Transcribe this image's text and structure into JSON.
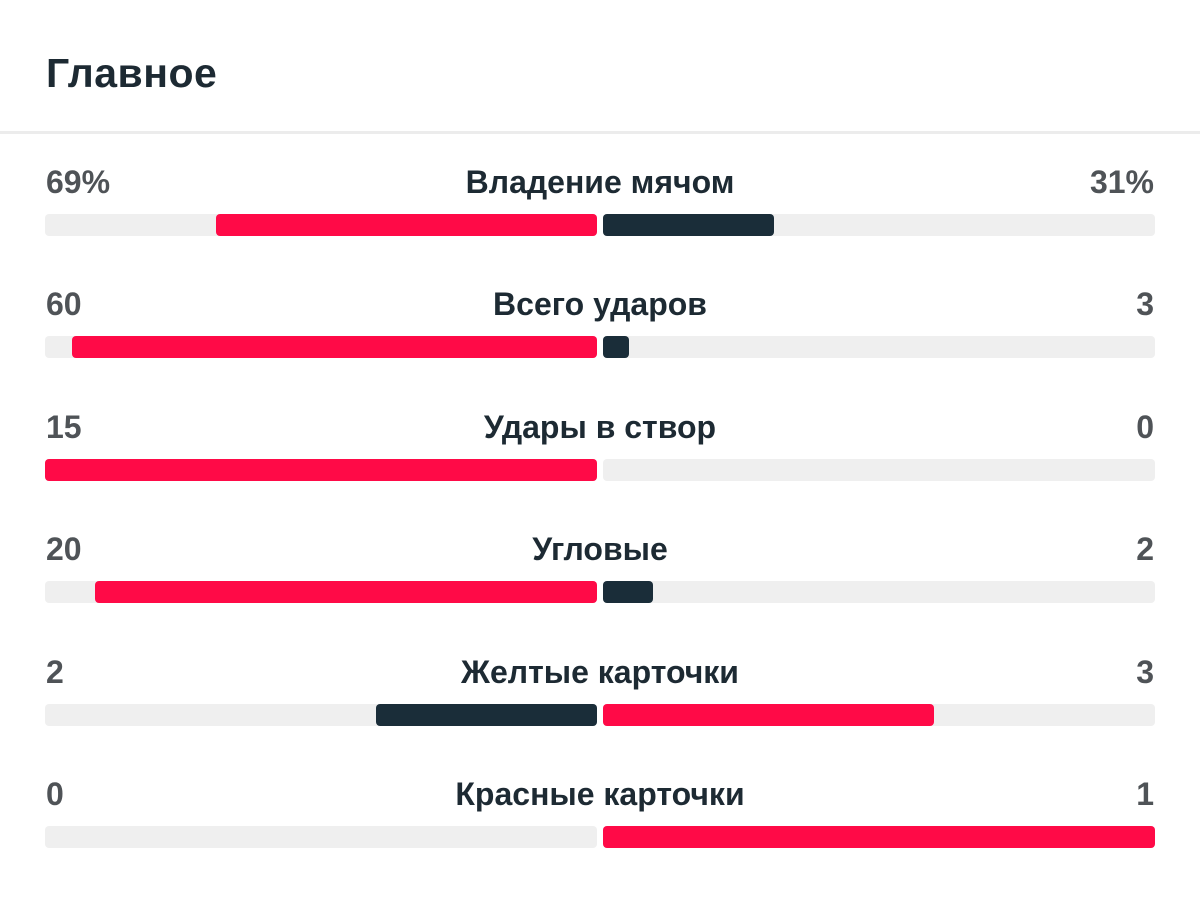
{
  "section": {
    "title": "Главное"
  },
  "colors": {
    "home": "#ff0a47",
    "away": "#1a2d39",
    "track": "#efefef"
  },
  "stats": [
    {
      "label": "Владение мячом",
      "left": "69%",
      "right": "31%",
      "left_fill": 0.69,
      "right_fill": 0.31,
      "left_color": "#ff0a47",
      "right_color": "#1a2d39"
    },
    {
      "label": "Всего ударов",
      "left": "60",
      "right": "3",
      "left_fill": 0.952,
      "right_fill": 0.048,
      "left_color": "#ff0a47",
      "right_color": "#1a2d39"
    },
    {
      "label": "Удары в створ",
      "left": "15",
      "right": "0",
      "left_fill": 1.0,
      "right_fill": 0.0,
      "left_color": "#ff0a47",
      "right_color": "#1a2d39"
    },
    {
      "label": "Угловые",
      "left": "20",
      "right": "2",
      "left_fill": 0.909,
      "right_fill": 0.091,
      "left_color": "#ff0a47",
      "right_color": "#1a2d39"
    },
    {
      "label": "Желтые карточки",
      "left": "2",
      "right": "3",
      "left_fill": 0.4,
      "right_fill": 0.6,
      "left_color": "#1a2d39",
      "right_color": "#ff0a47"
    },
    {
      "label": "Красные карточки",
      "left": "0",
      "right": "1",
      "left_fill": 0.0,
      "right_fill": 1.0,
      "left_color": "#1a2d39",
      "right_color": "#ff0a47"
    }
  ]
}
